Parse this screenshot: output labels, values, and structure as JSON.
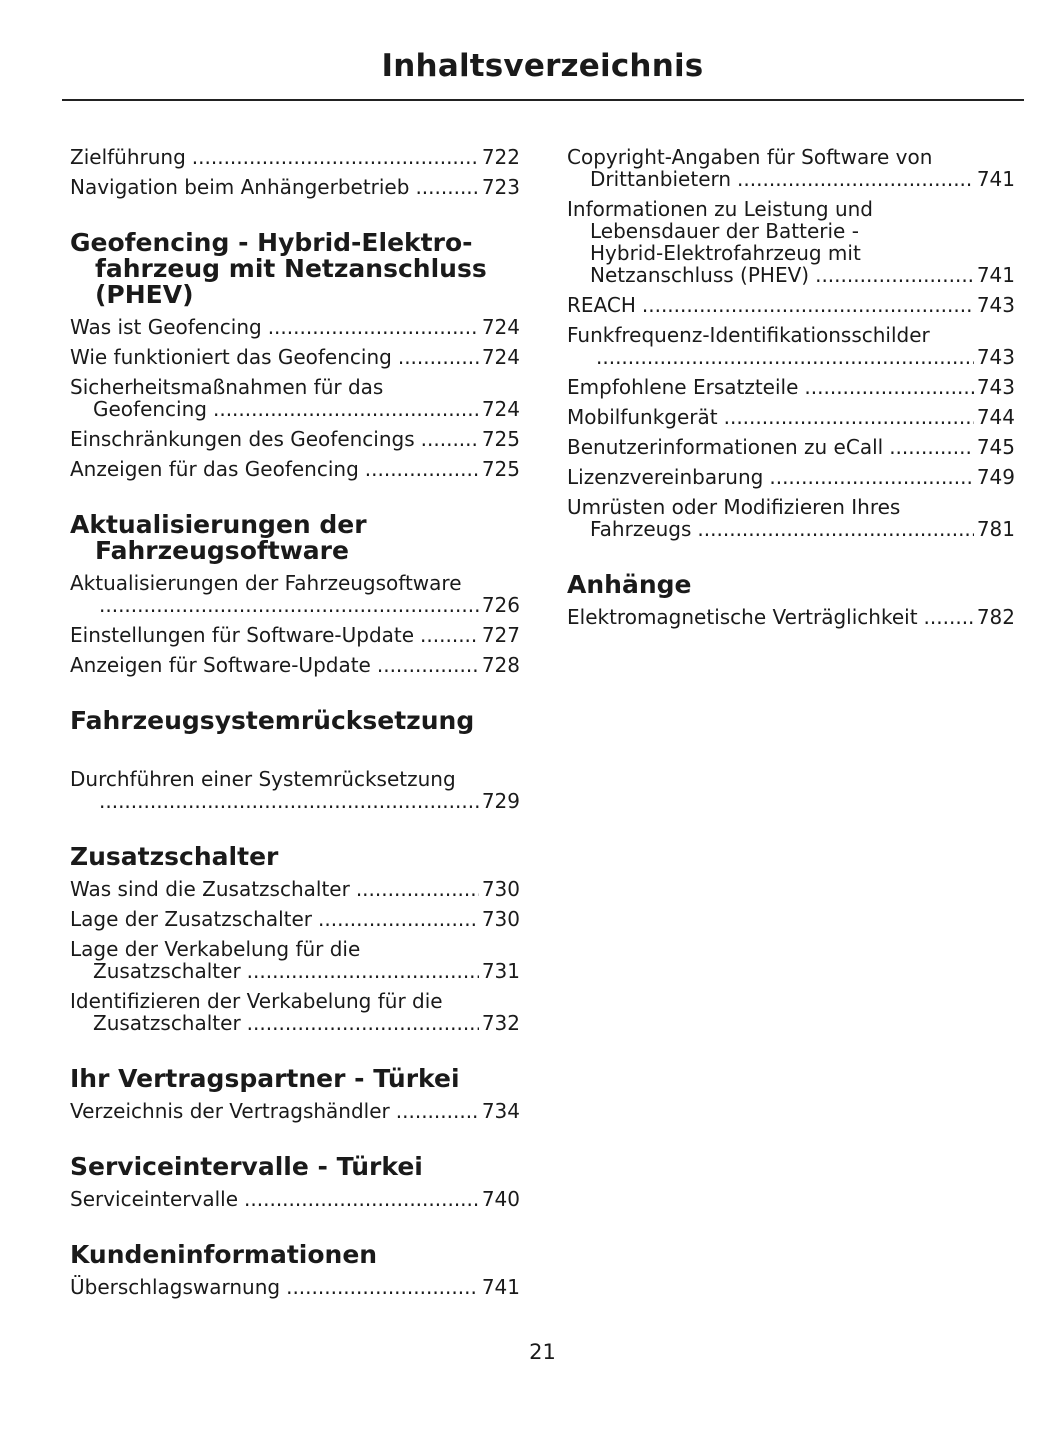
{
  "title": "Inhaltsverzeichnis",
  "page_number": "21",
  "left": [
    {
      "heading": [],
      "entries": [
        {
          "lines": [
            "Zielführung"
          ],
          "page": "722"
        },
        {
          "lines": [
            "Navigation beim Anhängerbetrieb"
          ],
          "page": "723"
        }
      ]
    },
    {
      "heading": [
        "Geofencing - Hybrid-Elektro-",
        "fahrzeug mit Netzanschluss",
        "(PHEV)"
      ],
      "entries": [
        {
          "lines": [
            "Was ist Geofencing"
          ],
          "page": "724"
        },
        {
          "lines": [
            "Wie funktioniert das Geofencing"
          ],
          "page": "724"
        },
        {
          "lines": [
            "Sicherheitsmaßnahmen für das",
            "Geofencing"
          ],
          "page": "724"
        },
        {
          "lines": [
            "Einschränkungen des Geofencings"
          ],
          "page": "725"
        },
        {
          "lines": [
            "Anzeigen für das Geofencing"
          ],
          "page": "725"
        }
      ]
    },
    {
      "heading": [
        "Aktualisierungen der",
        "Fahrzeugsoftware"
      ],
      "entries": [
        {
          "lines": [
            "Aktualisierungen der Fahrzeugsoftware",
            ""
          ],
          "page": "726"
        },
        {
          "lines": [
            "Einstellungen für Software-Update"
          ],
          "page": "727"
        },
        {
          "lines": [
            "Anzeigen für Software-Update"
          ],
          "page": "728"
        }
      ]
    },
    {
      "heading": [
        "Fahrzeugsystemrücksetzung"
      ],
      "entries": [
        {
          "lines": [
            "Durchführen einer Systemrücksetzung",
            ""
          ],
          "page": "729"
        }
      ]
    },
    {
      "heading": [
        "Zusatzschalter"
      ],
      "entries": [
        {
          "lines": [
            "Was sind die Zusatzschalter"
          ],
          "page": "730"
        },
        {
          "lines": [
            "Lage der Zusatzschalter"
          ],
          "page": "730"
        },
        {
          "lines": [
            "Lage der Verkabelung für die",
            "Zusatzschalter"
          ],
          "page": "731"
        },
        {
          "lines": [
            "Identifizieren der Verkabelung für die",
            "Zusatzschalter"
          ],
          "page": "732"
        }
      ]
    },
    {
      "heading": [
        "Ihr Vertragspartner - Türkei"
      ],
      "entries": [
        {
          "lines": [
            "Verzeichnis der Vertragshändler"
          ],
          "page": "734"
        }
      ]
    },
    {
      "heading": [
        "Serviceintervalle - Türkei"
      ],
      "entries": [
        {
          "lines": [
            "Serviceintervalle"
          ],
          "page": "740"
        }
      ]
    },
    {
      "heading": [
        "Kundeninformationen"
      ],
      "entries": [
        {
          "lines": [
            "Überschlagswarnung"
          ],
          "page": "741"
        }
      ]
    }
  ],
  "right": [
    {
      "heading": [],
      "entries": [
        {
          "lines": [
            "Copyright-Angaben für Software von",
            "Drittanbietern"
          ],
          "page": "741"
        },
        {
          "lines": [
            "Informationen zu Leistung und",
            "Lebensdauer der Batterie -",
            "Hybrid-Elektrofahrzeug mit",
            "Netzanschluss (PHEV)"
          ],
          "page": "741"
        },
        {
          "lines": [
            "REACH"
          ],
          "page": "743"
        },
        {
          "lines": [
            "Funkfrequenz-Identifikationsschilder",
            ""
          ],
          "page": "743"
        },
        {
          "lines": [
            "Empfohlene Ersatzteile"
          ],
          "page": "743"
        },
        {
          "lines": [
            "Mobilfunkgerät"
          ],
          "page": "744"
        },
        {
          "lines": [
            "Benutzerinformationen zu eCall"
          ],
          "page": "745"
        },
        {
          "lines": [
            "Lizenzvereinbarung"
          ],
          "page": "749"
        },
        {
          "lines": [
            "Umrüsten oder Modifizieren Ihres",
            "Fahrzeugs"
          ],
          "page": "781"
        }
      ]
    },
    {
      "heading": [
        "Anhänge"
      ],
      "entries": [
        {
          "lines": [
            "Elektromagnetische Verträglichkeit"
          ],
          "page": "782"
        }
      ]
    }
  ]
}
